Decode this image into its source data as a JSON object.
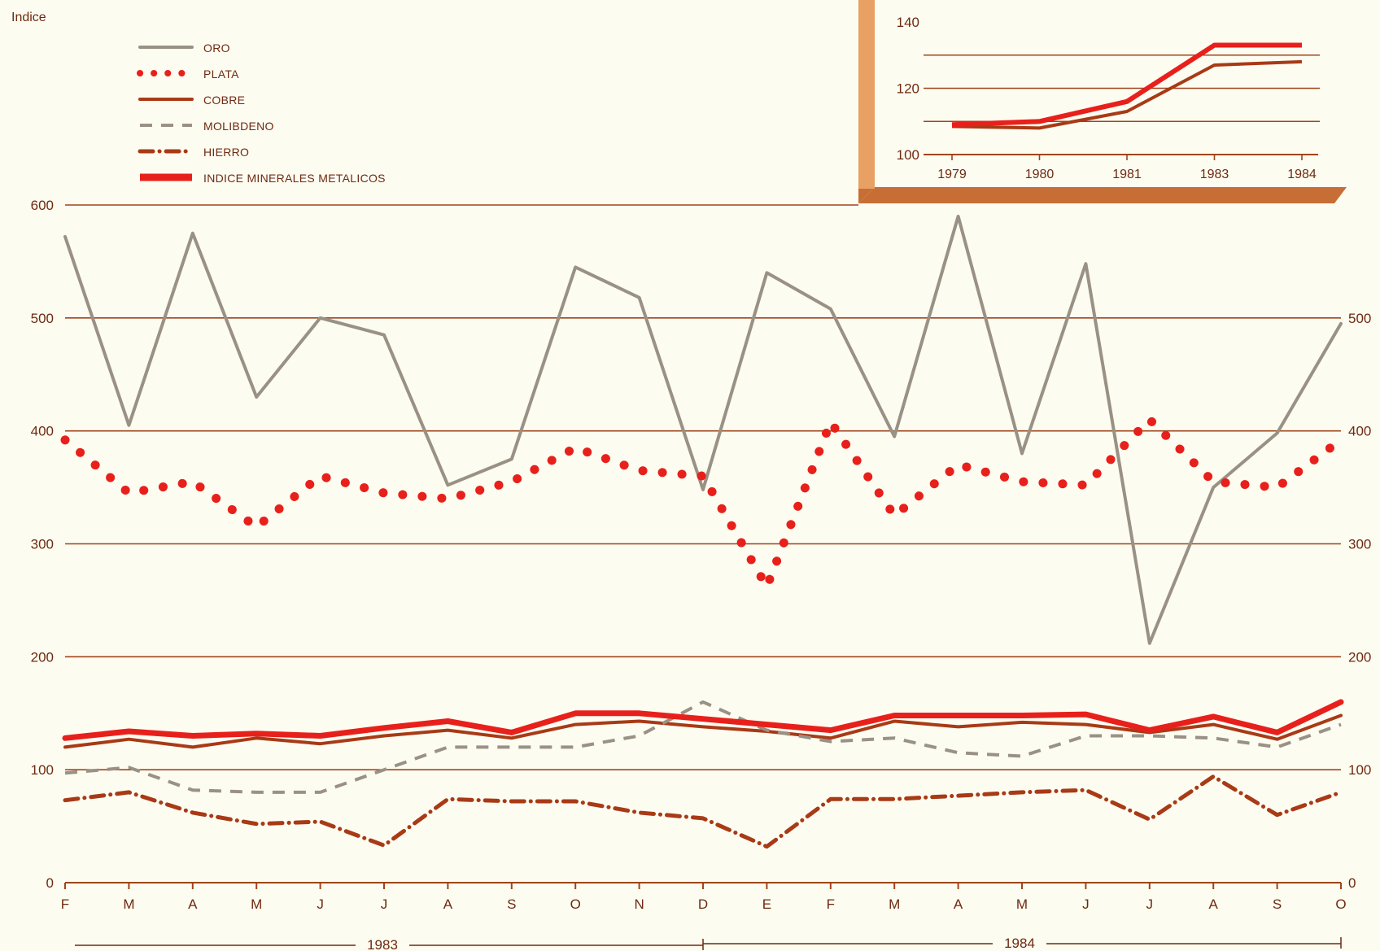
{
  "chart_data": [
    {
      "type": "line",
      "ylabel": "Indice",
      "ylim": [
        0,
        600
      ],
      "yticks": [
        "0",
        "100",
        "200",
        "300",
        "400",
        "500",
        "600"
      ],
      "yticks_right": [
        "0",
        "100",
        "200",
        "300",
        "400",
        "500"
      ],
      "categories": [
        "F",
        "M",
        "A",
        "M",
        "J",
        "J",
        "A",
        "S",
        "O",
        "N",
        "D",
        "E",
        "F",
        "M",
        "A",
        "M",
        "J",
        "J",
        "A",
        "S",
        "O"
      ],
      "year_labels": [
        "1983",
        "1984"
      ],
      "grid": true,
      "legend_position": "top-left",
      "series": [
        {
          "name": "ORO",
          "style": "solid",
          "color": "#9a9185",
          "values": [
            572,
            405,
            575,
            430,
            500,
            485,
            352,
            375,
            545,
            518,
            348,
            540,
            508,
            395,
            590,
            380,
            548,
            212,
            350,
            398,
            495
          ]
        },
        {
          "name": "PLATA",
          "style": "dotted",
          "color": "#e8201b",
          "values": [
            392,
            345,
            355,
            315,
            360,
            345,
            340,
            355,
            385,
            365,
            360,
            262,
            408,
            325,
            370,
            355,
            352,
            410,
            355,
            350,
            392
          ]
        },
        {
          "name": "COBRE",
          "style": "solid",
          "color": "#a83a16",
          "values": [
            120,
            127,
            120,
            128,
            123,
            130,
            135,
            128,
            140,
            143,
            138,
            134,
            128,
            143,
            138,
            142,
            140,
            133,
            140,
            127,
            148
          ]
        },
        {
          "name": "MOLIBDENO",
          "style": "dashed",
          "color": "#9a9185",
          "values": [
            97,
            102,
            82,
            80,
            80,
            100,
            120,
            120,
            120,
            130,
            160,
            135,
            125,
            128,
            115,
            112,
            130,
            130,
            128,
            120,
            140
          ]
        },
        {
          "name": "HIERRO",
          "style": "dashdot",
          "color": "#a83a16",
          "values": [
            73,
            80,
            62,
            52,
            54,
            33,
            74,
            72,
            72,
            62,
            57,
            32,
            74,
            74,
            77,
            80,
            82,
            56,
            94,
            60,
            80
          ]
        },
        {
          "name": "INDICE MINERALES METALICOS",
          "style": "thick",
          "color": "#e8201b",
          "values": [
            128,
            134,
            130,
            132,
            130,
            137,
            143,
            133,
            150,
            150,
            145,
            140,
            135,
            148,
            148,
            148,
            149,
            135,
            147,
            133,
            160
          ]
        }
      ]
    },
    {
      "type": "line",
      "categories": [
        "1979",
        "1980",
        "1981",
        "1983",
        "1984"
      ],
      "ylim": [
        100,
        140
      ],
      "yticks": [
        "100",
        "120",
        "140"
      ],
      "series": [
        {
          "name": "INDICE MINERALES METALICOS",
          "color": "#e8201b",
          "values": [
            109,
            110,
            116,
            133,
            133
          ]
        },
        {
          "name": "COBRE",
          "color": "#a83a16",
          "values": [
            108.5,
            108,
            113,
            127,
            128
          ]
        }
      ]
    }
  ],
  "colors": {
    "background": "#fdfcf1",
    "gridline": "#a0441a",
    "inset_frame": "#e8a063",
    "inset_shadow": "#c66e35",
    "axis_text": "#6e2a10"
  }
}
